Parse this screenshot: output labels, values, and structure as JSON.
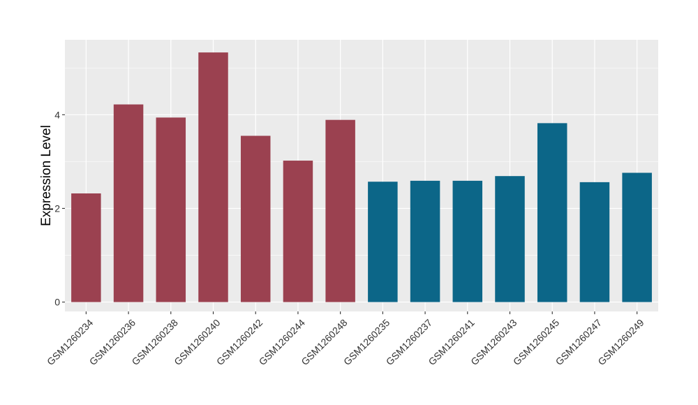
{
  "chart_data": {
    "type": "bar",
    "title": "",
    "xlabel": "",
    "ylabel": "Expression Level",
    "ylim": [
      -0.2,
      5.6
    ],
    "yticks": [
      0,
      2,
      4
    ],
    "grid": true,
    "legend": "none",
    "categories": [
      "GSM1260234",
      "GSM1260236",
      "GSM1260238",
      "GSM1260240",
      "GSM1260242",
      "GSM1260244",
      "GSM1260248",
      "GSM1260235",
      "GSM1260237",
      "GSM1260241",
      "GSM1260243",
      "GSM1260245",
      "GSM1260247",
      "GSM1260249"
    ],
    "values": [
      2.32,
      4.22,
      3.94,
      5.33,
      3.55,
      3.02,
      3.89,
      2.57,
      2.59,
      2.59,
      2.69,
      3.82,
      2.56,
      2.76
    ],
    "group": [
      "a",
      "a",
      "a",
      "a",
      "a",
      "a",
      "a",
      "b",
      "b",
      "b",
      "b",
      "b",
      "b",
      "b"
    ],
    "colors": {
      "a": "#9B4150",
      "b": "#0C6688"
    },
    "panel_background": "#EBEBEB",
    "grid_color": "#FFFFFF"
  }
}
